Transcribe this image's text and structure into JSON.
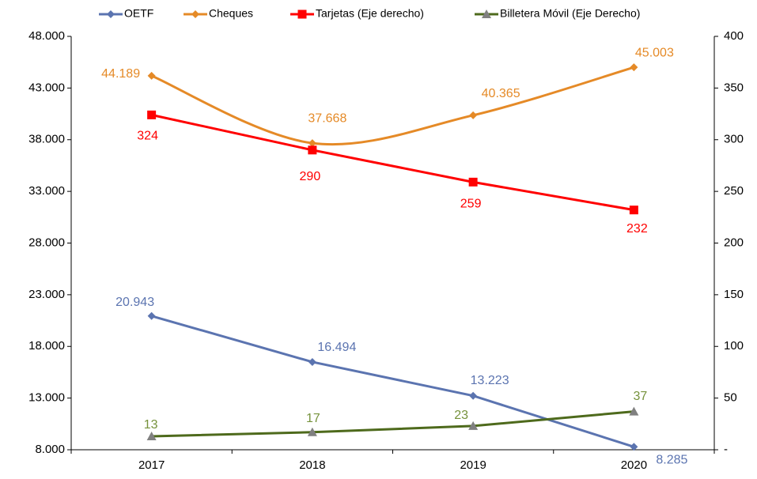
{
  "chart_data": {
    "type": "line",
    "categories": [
      "2017",
      "2018",
      "2019",
      "2020"
    ],
    "series": [
      {
        "name": "OETF",
        "color": "#5b74b0",
        "marker": "diamond",
        "values": [
          20943,
          16494,
          13223,
          8285
        ],
        "value_labels": [
          "20.943",
          "16.494",
          "13.223",
          "8.285"
        ]
      },
      {
        "name": "Cheques",
        "color": "#e58a27",
        "marker": "diamond",
        "smooth": true,
        "values": [
          44189,
          37668,
          40365,
          45003
        ],
        "value_labels": [
          "44.189",
          "37.668",
          "40.365",
          "45.003"
        ]
      },
      {
        "name": "Tarjetas (Eje derecho)",
        "color": "#ff0000",
        "marker": "square",
        "axis": "y2",
        "values": [
          324,
          290,
          259,
          232
        ]
      },
      {
        "name": "Billetera Móvil (Eje Derecho)",
        "color": "#4e6a1c",
        "marker": "triangle",
        "axis": "y2",
        "values": [
          13,
          17,
          23,
          37
        ]
      }
    ],
    "ylim": [
      8000,
      48000
    ],
    "yticks": [
      {
        "value": 8000,
        "label": "8.000"
      },
      {
        "value": 13000,
        "label": "13.000"
      },
      {
        "value": 18000,
        "label": "18.000"
      },
      {
        "value": 23000,
        "label": "23.000"
      },
      {
        "value": 28000,
        "label": "28.000"
      },
      {
        "value": 33000,
        "label": "33.000"
      },
      {
        "value": 38000,
        "label": "38.000"
      },
      {
        "value": 43000,
        "label": "43.000"
      },
      {
        "value": 48000,
        "label": "48.000"
      }
    ],
    "y2lim": [
      0,
      400
    ],
    "y2ticks": [
      {
        "value": 0,
        "label": "-"
      },
      50,
      100,
      150,
      200,
      250,
      300,
      350,
      400
    ],
    "legend": "top",
    "grid": false
  }
}
